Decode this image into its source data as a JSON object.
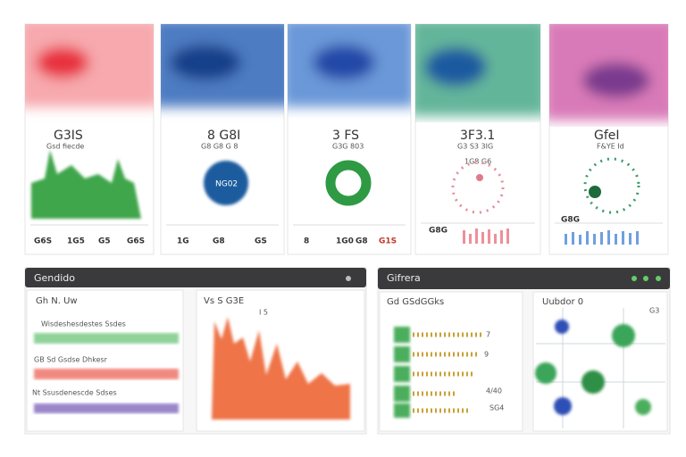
{
  "cards": [
    {
      "title": "G3IS",
      "subtitle": "Gsd fiecde",
      "footer": [
        "G6S",
        "1G5",
        "G5",
        "G6S"
      ]
    },
    {
      "title": "8 G8I",
      "subtitle": "G8 G8 G 8",
      "badge": "NG02",
      "footer": [
        "1G",
        "G8",
        "GS"
      ]
    },
    {
      "title": "3 FS",
      "subtitle": "G3G 803",
      "footer": [
        "8",
        "1G0",
        "G8",
        "G1S"
      ]
    },
    {
      "title": "3F3.1",
      "subtitle": "G3 S3 3IG",
      "note": "1G8 G6",
      "footer": [
        "G8G"
      ]
    },
    {
      "title": "GfeI",
      "subtitle": "F&YE Id",
      "footer": [
        "G8G"
      ]
    }
  ],
  "panels": [
    {
      "title": "Gendido",
      "left": {
        "heading": "Gh N. Uw",
        "rows": [
          "Wisdeshesdestes Ssdes",
          "GB Sd Gsdse Dhkesr",
          "Nt Ssusdenescde Sdses"
        ]
      },
      "right": {
        "heading": "Vs S G3E",
        "subheading": "I 5"
      }
    },
    {
      "title": "Gifrera",
      "left": {
        "heading": "Gd GSdGGks",
        "values": [
          "7",
          "9",
          "4/40",
          "SG4"
        ]
      },
      "right": {
        "heading": "Uubdor 0",
        "tag": "G3"
      }
    }
  ]
}
